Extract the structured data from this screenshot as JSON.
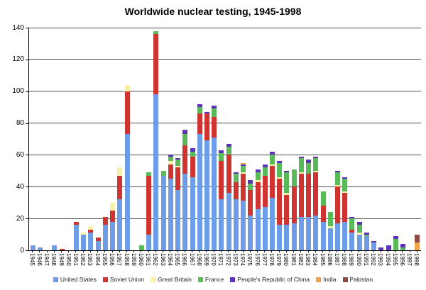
{
  "title": "Worldwide nuclear testing, 1945-1998",
  "colors": {
    "united_states": "#6d9de8",
    "soviet_union": "#cf3430",
    "great_britain": "#f6f1a7",
    "france": "#5aba5a",
    "china": "#5c33b8",
    "india": "#f0a348",
    "pakistan": "#8c4a43",
    "gridline": "#4d4d4d",
    "axis": "#000000"
  },
  "legend": [
    "United States",
    "Soviet Union",
    "Great Britain",
    "France",
    "People's Republic of China",
    "India",
    "Pakistan"
  ],
  "chart_data": {
    "type": "bar",
    "stacked": true,
    "title": "Worldwide nuclear testing, 1945-1998",
    "xlabel": "",
    "ylabel": "",
    "ylim": [
      0,
      140
    ],
    "y_ticks": [
      0,
      20,
      40,
      60,
      80,
      100,
      120,
      140
    ],
    "grid": true,
    "legend_position": "bottom",
    "categories": [
      "1945",
      "1946",
      "1947",
      "1948",
      "1949",
      "1950",
      "1951",
      "1952",
      "1953",
      "1954",
      "1955",
      "1956",
      "1957",
      "1958",
      "1959",
      "1960",
      "1961",
      "1962",
      "1963",
      "1964",
      "1965",
      "1966",
      "1967",
      "1968",
      "1969",
      "1970",
      "1971",
      "1972",
      "1973",
      "1974",
      "1975",
      "1976",
      "1977",
      "1978",
      "1979",
      "1980",
      "1981",
      "1982",
      "1983",
      "1984",
      "1985",
      "1986",
      "1987",
      "1988",
      "1989",
      "1990",
      "1991",
      "1992",
      "1993",
      "1994",
      "1995",
      "1996",
      "1997",
      "1998"
    ],
    "series": [
      {
        "name": "United States",
        "color": "#6d9de8",
        "values": [
          3,
          2,
          0,
          3,
          0,
          0,
          16,
          10,
          11,
          6,
          16,
          18,
          32,
          73,
          0,
          0,
          10,
          98,
          47,
          45,
          38,
          48,
          46,
          73,
          69,
          71,
          32,
          36,
          32,
          31,
          22,
          26,
          27,
          33,
          16,
          16,
          17,
          21,
          21,
          22,
          18,
          14,
          17,
          18,
          11,
          10,
          9,
          5,
          0,
          0,
          0,
          0,
          0,
          0
        ]
      },
      {
        "name": "Soviet Union",
        "color": "#cf3430",
        "values": [
          0,
          0,
          0,
          0,
          1,
          0,
          2,
          0,
          2,
          2,
          5,
          7,
          15,
          27,
          0,
          0,
          37,
          38,
          0,
          9,
          14,
          18,
          13,
          13,
          17,
          13,
          24,
          24,
          11,
          17,
          16,
          17,
          20,
          20,
          29,
          19,
          23,
          27,
          27,
          27,
          10,
          0,
          23,
          18,
          2,
          0,
          0,
          0,
          0,
          0,
          0,
          0,
          0,
          0
        ]
      },
      {
        "name": "Great Britain",
        "color": "#f6f1a7",
        "values": [
          0,
          0,
          0,
          0,
          0,
          0,
          0,
          1,
          2,
          0,
          0,
          5,
          5,
          4,
          0,
          0,
          0,
          0,
          0,
          2,
          1,
          0,
          0,
          0,
          0,
          0,
          0,
          0,
          0,
          1,
          0,
          1,
          0,
          1,
          1,
          1,
          0,
          1,
          0,
          1,
          0,
          1,
          1,
          1,
          0,
          1,
          0,
          0,
          0,
          0,
          0,
          0,
          0,
          0
        ]
      },
      {
        "name": "France",
        "color": "#5aba5a",
        "values": [
          0,
          0,
          0,
          0,
          0,
          0,
          0,
          0,
          0,
          0,
          0,
          0,
          0,
          0,
          0,
          3,
          2,
          2,
          3,
          3,
          4,
          7,
          3,
          4,
          0,
          5,
          5,
          5,
          5,
          4,
          4,
          5,
          5,
          6,
          9,
          13,
          11,
          9,
          7,
          8,
          9,
          9,
          8,
          8,
          7,
          5,
          1,
          0,
          0,
          0,
          7,
          2,
          0,
          0
        ]
      },
      {
        "name": "People's Republic of China",
        "color": "#5c33b8",
        "values": [
          0,
          0,
          0,
          0,
          0,
          0,
          0,
          0,
          0,
          0,
          0,
          0,
          0,
          0,
          0,
          0,
          0,
          0,
          0,
          1,
          1,
          3,
          2,
          2,
          1,
          2,
          2,
          2,
          1,
          1,
          2,
          2,
          2,
          2,
          1,
          1,
          0,
          1,
          2,
          1,
          0,
          0,
          1,
          1,
          1,
          2,
          1,
          1,
          2,
          3,
          2,
          2,
          0,
          0
        ]
      },
      {
        "name": "India",
        "color": "#f0a348",
        "values": [
          0,
          0,
          0,
          0,
          0,
          0,
          0,
          0,
          0,
          0,
          0,
          0,
          0,
          0,
          0,
          0,
          0,
          0,
          0,
          0,
          0,
          0,
          0,
          0,
          0,
          0,
          0,
          0,
          0,
          1,
          0,
          0,
          0,
          0,
          0,
          0,
          0,
          0,
          0,
          0,
          0,
          0,
          0,
          0,
          0,
          0,
          0,
          0,
          0,
          0,
          0,
          0,
          0,
          5
        ]
      },
      {
        "name": "Pakistan",
        "color": "#8c4a43",
        "values": [
          0,
          0,
          0,
          0,
          0,
          0,
          0,
          0,
          0,
          0,
          0,
          0,
          0,
          0,
          0,
          0,
          0,
          0,
          0,
          0,
          0,
          0,
          0,
          0,
          0,
          0,
          0,
          0,
          0,
          0,
          0,
          0,
          0,
          0,
          0,
          0,
          0,
          0,
          0,
          0,
          0,
          0,
          0,
          0,
          0,
          0,
          0,
          0,
          0,
          0,
          0,
          0,
          0,
          5
        ]
      }
    ]
  }
}
